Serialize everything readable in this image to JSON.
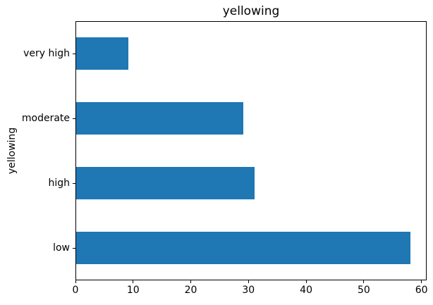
{
  "chart_data": {
    "type": "bar",
    "orientation": "horizontal",
    "title": "yellowing",
    "ylabel": "yellowing",
    "xlabel": "",
    "categories": [
      "very high",
      "moderate",
      "high",
      "low"
    ],
    "categories_order": "top-to-bottom",
    "values": [
      9,
      29,
      31,
      58
    ],
    "x_ticks": [
      0,
      10,
      20,
      30,
      40,
      50,
      60
    ],
    "xlim": [
      0,
      60.9
    ],
    "bar_color": "#1f77b4",
    "text_color": "#000000",
    "grid": false,
    "legend": false
  }
}
